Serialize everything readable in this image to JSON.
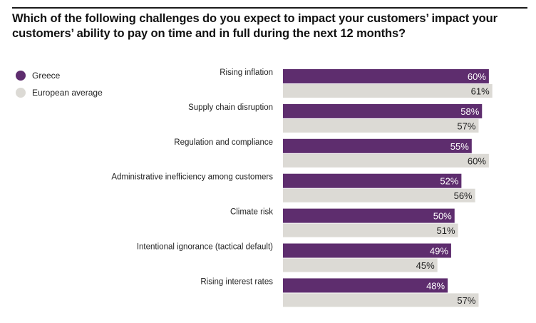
{
  "title": "Which of the following challenges do you expect to impact your customers’ impact your customers’ ability to pay on time and in full during the next 12 months?",
  "colors": {
    "greece": "#5e2d6e",
    "european_average": "#dcdad5",
    "greece_label": "#ffffff",
    "european_label": "#222222"
  },
  "chart_data": {
    "type": "bar",
    "orientation": "horizontal",
    "title": "Which of the following challenges do you expect to impact your customers’ impact your customers’ ability to pay on time and in full during the next 12 months?",
    "xlabel": "",
    "ylabel": "",
    "unit": "%",
    "xlim": [
      0,
      100
    ],
    "grid": false,
    "legend_position": "top-left",
    "categories": [
      "Rising inflation",
      "Supply chain disruption",
      "Regulation and compliance",
      "Administrative inefficiency among customers",
      "Climate risk",
      "Intentional ignorance (tactical default)",
      "Rising interest rates"
    ],
    "series": [
      {
        "name": "Greece",
        "values": [
          60,
          58,
          55,
          52,
          50,
          49,
          48
        ]
      },
      {
        "name": "European average",
        "values": [
          61,
          57,
          60,
          56,
          51,
          45,
          57
        ]
      }
    ]
  }
}
